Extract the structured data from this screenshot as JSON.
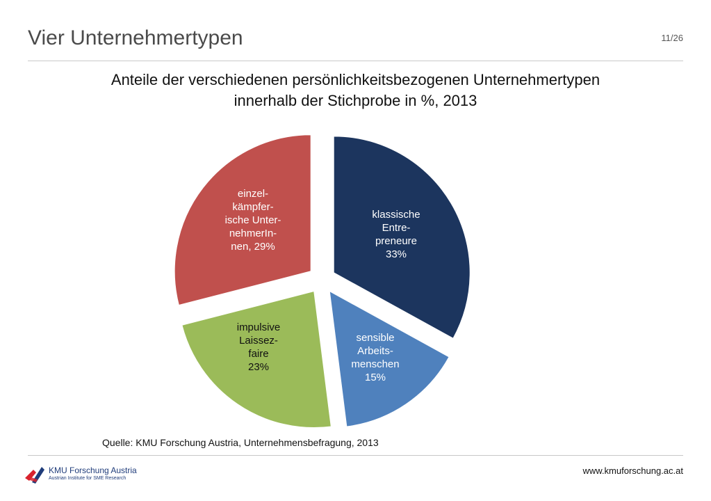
{
  "slide": {
    "title": "Vier Unternehmertypen",
    "page": "11/26"
  },
  "chart_title": {
    "line1": "Anteile der verschiedenen persönlichkeitsbezogenen Unternehmertypen",
    "line2": "innerhalb der Stichprobe in %, 2013"
  },
  "chart_data": {
    "type": "pie",
    "title": "Anteile der verschiedenen persönlichkeitsbezogenen Unternehmertypen innerhalb der Stichprobe in %, 2013",
    "exploded": true,
    "slices": [
      {
        "label": "klassische Entre-preneure",
        "value": 33,
        "color": "#1c355e",
        "text_color": "#ffffff",
        "label_lines": [
          "klassische",
          "Entre-",
          "preneure",
          "33%"
        ]
      },
      {
        "label": "sensible Arbeits-menschen",
        "value": 15,
        "color": "#4f81bd",
        "text_color": "#ffffff",
        "label_lines": [
          "sensible",
          "Arbeits-",
          "menschen",
          "15%"
        ]
      },
      {
        "label": "impulsive Laissez-faire",
        "value": 23,
        "color": "#9bbb59",
        "text_color": "#111111",
        "label_lines": [
          "impulsive",
          "Laissez-",
          "faire",
          "23%"
        ]
      },
      {
        "label": "einzel-kämpfer-ische Unter-nehmerIn-nen",
        "value": 29,
        "color": "#c0504d",
        "text_color": "#ffffff",
        "label_lines": [
          "einzel-",
          "kämpfer-",
          "ische Unter-",
          "nehmerIn-",
          "nen, 29%"
        ]
      }
    ]
  },
  "source": "Quelle: KMU Forschung Austria, Unternehmensbefragung, 2013",
  "footer": {
    "url": "www.kmuforschung.ac.at",
    "logo_name": "KMU Forschung Austria",
    "logo_sub": "Austrian Institute for SME Research"
  },
  "colors": {
    "title_text": "#4a4a4a",
    "rule": "#c8c8c8",
    "logo_red": "#d9232e",
    "logo_blue": "#1f3c7a"
  }
}
